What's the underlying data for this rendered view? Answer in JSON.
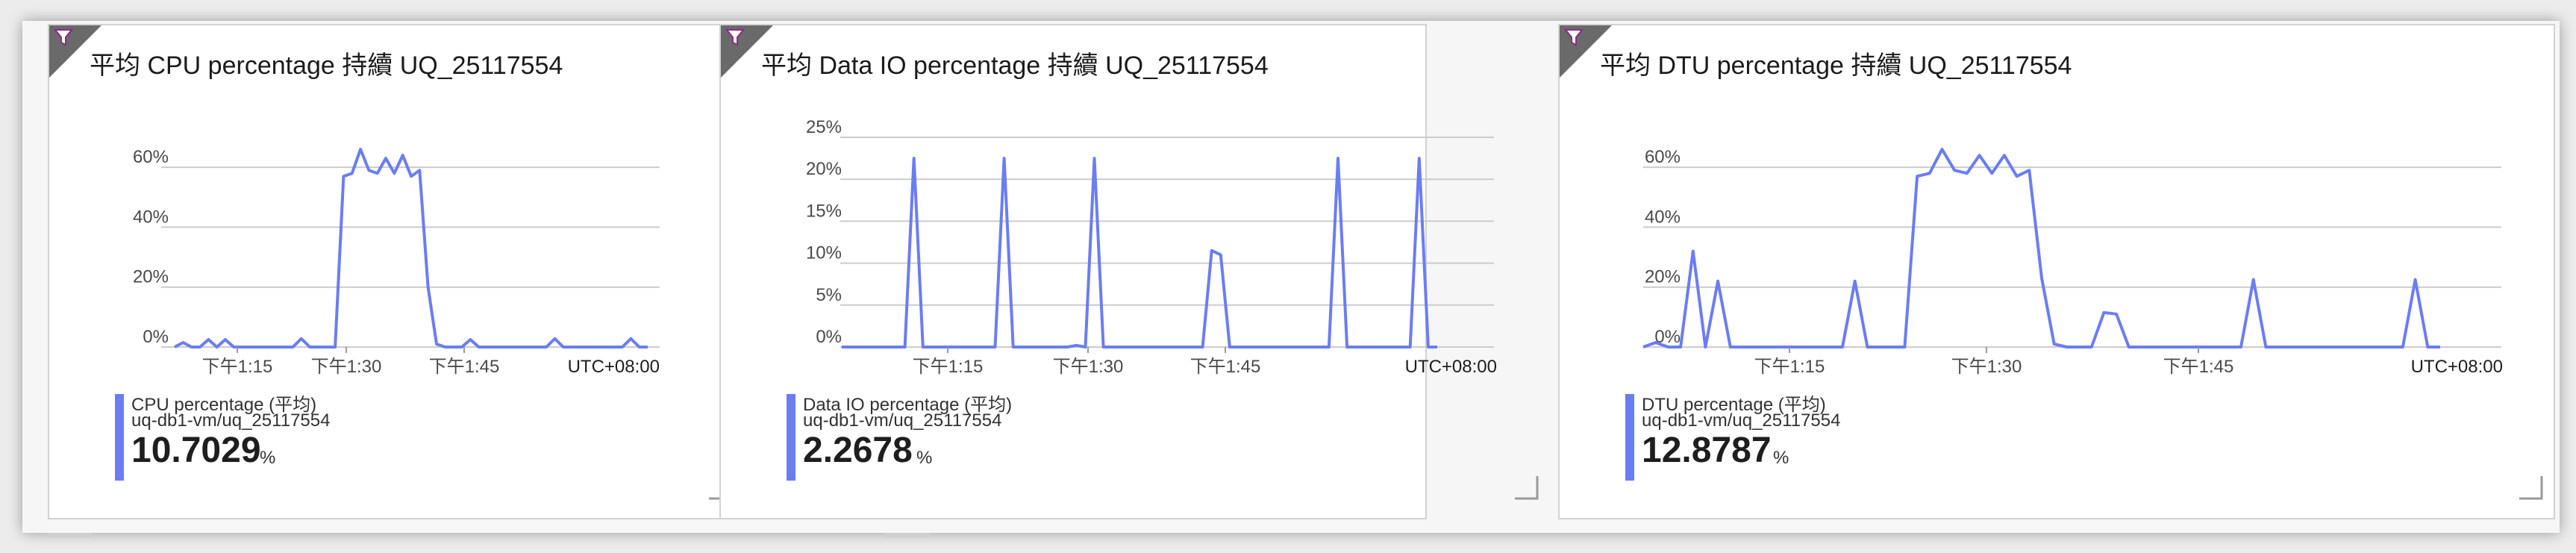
{
  "tiles": [
    {
      "title": "平均 CPU percentage 持續 UQ_25117554",
      "legend": {
        "name": "CPU percentage (平均)",
        "resource": "uq-db1-vm/uq_25117554",
        "value": "10.7029",
        "unit": "%"
      },
      "chart_data": {
        "type": "line",
        "y_ticks": [
          "0%",
          "20%",
          "40%",
          "60%"
        ],
        "y_range": [
          0,
          70
        ],
        "x_ticks": [
          "下午1:15",
          "下午1:30",
          "下午1:45"
        ],
        "timezone": "UTC+08:00",
        "series": [
          {
            "values": [
              0,
              1.5,
              0,
              0,
              2.5,
              0,
              2.5,
              0,
              0,
              0,
              0,
              0,
              0,
              0,
              0,
              2.8,
              0,
              0,
              0,
              0,
              57,
              58,
              66,
              59,
              58,
              63,
              58,
              64,
              57,
              59,
              20,
              1,
              0,
              0,
              0,
              2.5,
              0,
              0,
              0,
              0,
              0,
              0,
              0,
              0,
              0,
              2.8,
              0,
              0,
              0,
              0,
              0,
              0,
              0,
              0,
              2.8,
              0,
              0
            ]
          }
        ]
      }
    },
    {
      "title": "平均 Data IO percentage 持續 UQ_25117554",
      "legend": {
        "name": "Data IO percentage (平均)",
        "resource": "uq-db1-vm/uq_25117554",
        "value": "2.2678",
        "unit": "%"
      },
      "chart_data": {
        "type": "line",
        "y_ticks": [
          "0%",
          "5%",
          "10%",
          "15%",
          "20%",
          "25%"
        ],
        "y_range": [
          0,
          25
        ],
        "x_ticks": [
          "下午1:15",
          "下午1:30",
          "下午1:45"
        ],
        "timezone": "UTC+08:00",
        "series": [
          {
            "values": [
              0,
              0,
              0,
              0,
              0,
              0,
              0,
              0,
              22.5,
              0,
              0,
              0,
              0,
              0,
              0,
              0,
              0,
              0,
              22.5,
              0,
              0,
              0,
              0,
              0,
              0,
              0,
              0.2,
              0,
              22.5,
              0,
              0,
              0,
              0,
              0,
              0,
              0,
              0,
              0,
              0,
              0,
              0,
              11.5,
              11,
              0,
              0,
              0,
              0,
              0,
              0,
              0,
              0,
              0,
              0,
              0,
              0,
              22.5,
              0,
              0,
              0,
              0,
              0,
              0,
              0,
              0,
              22.5,
              0,
              0
            ]
          }
        ]
      }
    },
    {
      "title": "平均 DTU percentage 持續 UQ_25117554",
      "legend": {
        "name": "DTU percentage (平均)",
        "resource": "uq-db1-vm/uq_25117554",
        "value": "12.8787",
        "unit": "%"
      },
      "chart_data": {
        "type": "line",
        "y_ticks": [
          "0%",
          "20%",
          "40%",
          "60%"
        ],
        "y_range": [
          0,
          70
        ],
        "x_ticks": [
          "下午1:15",
          "下午1:30",
          "下午1:45"
        ],
        "timezone": "UTC+08:00",
        "series": [
          {
            "values": [
              0,
              1.5,
              0,
              0,
              32,
              0,
              22,
              0,
              0,
              0,
              0,
              0,
              0,
              0,
              0,
              0,
              0,
              22,
              0,
              0,
              0,
              0,
              57,
              58,
              66,
              59,
              58,
              64,
              58,
              64,
              57,
              59,
              23,
              1,
              0,
              0,
              0,
              11.5,
              11,
              0,
              0,
              0,
              0,
              0,
              0,
              0,
              0,
              0,
              0,
              22.5,
              0,
              0,
              0,
              0,
              0,
              0,
              0,
              0,
              0,
              0,
              0,
              0,
              22.5,
              0,
              0
            ]
          }
        ]
      }
    }
  ],
  "colors": {
    "series": "#6b7df2",
    "grid": "#cccccc",
    "filter_icon": "#8a2a8a"
  }
}
